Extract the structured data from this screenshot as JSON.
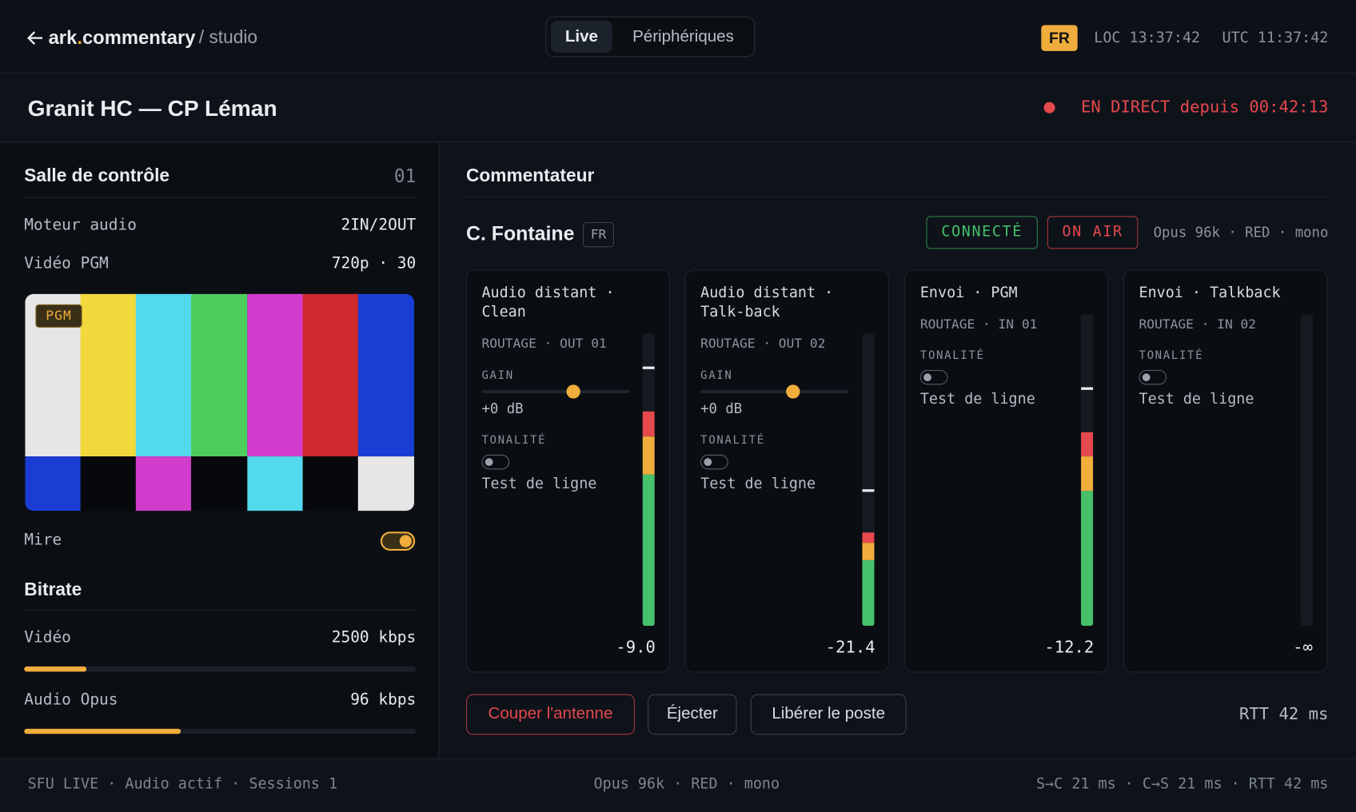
{
  "header": {
    "brand_prefix": "ark",
    "brand_dot": ".",
    "brand_suffix": "commentary",
    "section": "/ studio",
    "tabs": [
      "Live",
      "Périphériques"
    ],
    "language": "FR",
    "clock_local": "LOC 13:37:42",
    "clock_utc": "UTC 11:37:42"
  },
  "match": {
    "title": "Granit HC — CP Léman",
    "status": "EN DIRECT depuis 00:42:13"
  },
  "control_room": {
    "title": "Salle de contrôle",
    "number": "01",
    "rows": [
      {
        "label": "Moteur audio",
        "value": "2IN/2OUT"
      },
      {
        "label": "Vidéo PGM",
        "value": "720p · 30"
      }
    ],
    "preview_badge": "PGM",
    "test_pattern": "Mire"
  },
  "bitrate": {
    "title": "Bitrate",
    "rows": [
      {
        "label": "Vidéo",
        "value": "2500 kbps"
      },
      {
        "label": "Audio Opus",
        "value": "96 kbps"
      }
    ]
  },
  "commentator": {
    "section_title": "Commentateur",
    "name": "C. Fontaine",
    "language": "FR",
    "connection": "CONNECTÉ",
    "on_air": "ON AIR",
    "codec": "Opus 96k · RED · mono"
  },
  "channels": [
    {
      "title": [
        "Audio distant ·",
        "Clean"
      ],
      "routing": "ROUTAGE · OUT 01",
      "gain_label": "GAIN",
      "gain_value": "+0 dB",
      "tone_label": "TONALITÉ",
      "tone_action": "Test de ligne",
      "level": "-9.0"
    },
    {
      "title": [
        "Audio distant ·",
        "Talk-back"
      ],
      "routing": "ROUTAGE · OUT 02",
      "gain_label": "GAIN",
      "gain_value": "+0 dB",
      "tone_label": "TONALITÉ",
      "tone_action": "Test de ligne",
      "level": "-21.4"
    },
    {
      "title": [
        "Envoi · PGM"
      ],
      "routing": "ROUTAGE · IN 01",
      "tone_label": "TONALITÉ",
      "tone_action": "Test de ligne",
      "level": "-12.2"
    },
    {
      "title": [
        "Envoi · Talkback"
      ],
      "routing": "ROUTAGE · IN 02",
      "tone_label": "TONALITÉ",
      "tone_action": "Test de ligne",
      "level": "-∞"
    }
  ],
  "actions": {
    "buttons": [
      "Couper l'antenne",
      "Éjecter",
      "Libérer le poste"
    ],
    "rtt": "RTT 42 ms"
  },
  "footer": {
    "left": "SFU LIVE · Audio actif · Sessions 1",
    "center": "Opus 96k · RED · mono",
    "right": "S→C 21 ms · C→S 21 ms · RTT 42 ms"
  }
}
